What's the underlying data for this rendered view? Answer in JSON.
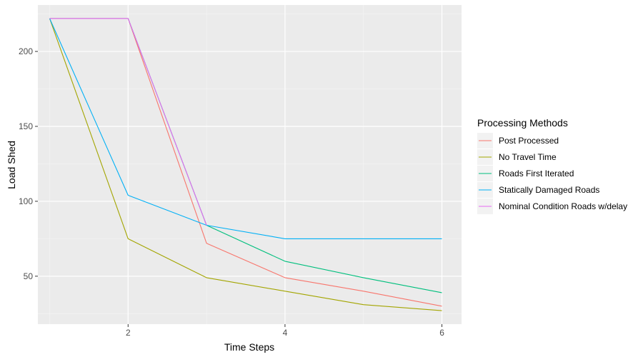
{
  "chart_data": {
    "type": "line",
    "title": "",
    "xlabel": "Time Steps",
    "ylabel": "Load Shed",
    "xlim": [
      0.85,
      6.25
    ],
    "ylim": [
      18,
      231
    ],
    "x_ticks": [
      2,
      4,
      6
    ],
    "y_ticks": [
      50,
      100,
      150,
      200
    ],
    "grid": true,
    "legend_position": "right",
    "legend_title": "Processing Methods",
    "x": [
      1,
      2,
      3,
      4,
      5,
      6
    ],
    "series": [
      {
        "name": "Post Processed",
        "color": "#F8766D",
        "values": [
          222,
          222,
          72,
          49,
          40,
          30
        ]
      },
      {
        "name": "No Travel Time",
        "color": "#A3A500",
        "values": [
          222,
          75,
          49,
          40,
          31,
          27
        ]
      },
      {
        "name": "Roads First Iterated",
        "color": "#00BF7D",
        "values": [
          222,
          222,
          84,
          60,
          49,
          39
        ]
      },
      {
        "name": "Statically Damaged Roads",
        "color": "#00B0F6",
        "values": [
          222,
          104,
          84,
          75,
          75,
          75
        ]
      },
      {
        "name": "Nominal Condition Roads w/delay",
        "color": "#E76BF3",
        "values": [
          222,
          222,
          84,
          null,
          null,
          null
        ]
      }
    ]
  }
}
